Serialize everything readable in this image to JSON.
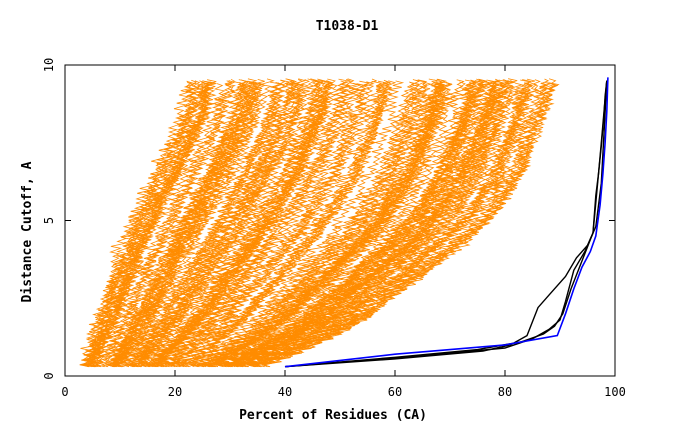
{
  "chart_data": {
    "type": "line",
    "title": "T1038-D1",
    "xlabel": "Percent of Residues (CA)",
    "ylabel": "Distance Cutoff, A",
    "xlim": [
      0,
      100
    ],
    "ylim": [
      0,
      10
    ],
    "x_ticks": [
      "0",
      "20",
      "40",
      "60",
      "80",
      "100"
    ],
    "y_ticks": [
      "0",
      "5",
      "10"
    ],
    "grid": false,
    "legend": "none",
    "colors": {
      "models": "#ff8c00",
      "reference": "#000000",
      "highlight": "#0000ff"
    },
    "model_envelope": {
      "description_free": true,
      "count": 140,
      "left_bound": [
        [
          4,
          0.3
        ],
        [
          6,
          1.5
        ],
        [
          8,
          2.5
        ],
        [
          10,
          3.7
        ],
        [
          12,
          4.6
        ],
        [
          15,
          5.8
        ],
        [
          17,
          6.5
        ],
        [
          20,
          7.6
        ],
        [
          22,
          8.4
        ],
        [
          23,
          9.5
        ]
      ],
      "right_bound": [
        [
          37,
          0.3
        ],
        [
          45,
          0.9
        ],
        [
          50,
          1.3
        ],
        [
          55,
          1.8
        ],
        [
          60,
          2.5
        ],
        [
          65,
          3.1
        ],
        [
          70,
          3.8
        ],
        [
          75,
          4.5
        ],
        [
          79,
          5.2
        ],
        [
          84,
          6.5
        ],
        [
          86,
          7.5
        ],
        [
          88,
          8.6
        ],
        [
          90,
          9.5
        ]
      ]
    },
    "series": [
      {
        "color": "#000000",
        "x": [
          40,
          60,
          75,
          83,
          87,
          89,
          90.5,
          92,
          94,
          96,
          96.5,
          97,
          97.5,
          98,
          98.2,
          98.5
        ],
        "y": [
          0.3,
          0.6,
          0.85,
          1.1,
          1.35,
          1.6,
          2.0,
          2.8,
          3.7,
          4.6,
          5.8,
          6.5,
          7.4,
          8.4,
          9.0,
          9.5
        ]
      },
      {
        "color": "#000000",
        "x": [
          40,
          60,
          76,
          81,
          84,
          86,
          88,
          91,
          93,
          95,
          96,
          97,
          97.5,
          98,
          98.5
        ],
        "y": [
          0.3,
          0.55,
          0.8,
          1.0,
          1.3,
          2.2,
          2.6,
          3.2,
          3.8,
          4.2,
          4.6,
          6.5,
          7.5,
          8.5,
          9.5
        ]
      },
      {
        "color": "#000000",
        "x": [
          40,
          65,
          80,
          85,
          88,
          90,
          91,
          92.5,
          94.5,
          96.5,
          97.5,
          98,
          98.5
        ],
        "y": [
          0.3,
          0.65,
          0.9,
          1.2,
          1.5,
          1.8,
          2.4,
          3.4,
          4.0,
          4.8,
          6.2,
          7.8,
          9.5
        ]
      },
      {
        "color": "#0000ff",
        "x": [
          40,
          60,
          80,
          89.5,
          91,
          92.5,
          94,
          95.5,
          96.5,
          97.3,
          97.8,
          98.2,
          98.5,
          98.7
        ],
        "y": [
          0.3,
          0.7,
          1.0,
          1.3,
          2.0,
          2.8,
          3.5,
          4.0,
          4.5,
          5.5,
          6.5,
          7.5,
          8.5,
          9.6
        ]
      }
    ]
  }
}
